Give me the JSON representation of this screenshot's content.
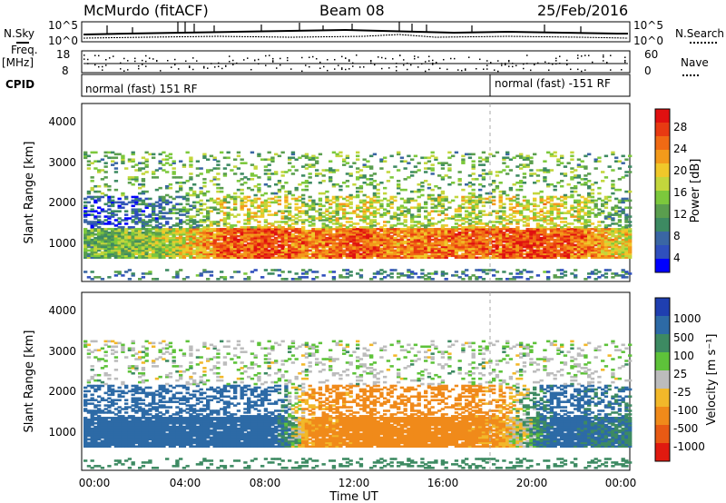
{
  "header": {
    "site": "McMurdo (fitACF)",
    "beam": "Beam 08",
    "date": "25/Feb/2016"
  },
  "strips": {
    "nsky_label": "N.Sky",
    "nsearch_label": "N.Search",
    "noise_ticks": [
      "10^5",
      "10^0"
    ],
    "freq_label": "Freq.",
    "freq_unit": "[MHz]",
    "freq_ticks": [
      "18",
      "8"
    ],
    "nave_label": "Nave",
    "nave_ticks": [
      "60",
      "0"
    ],
    "cpid_label": "CPID",
    "cpid_segments": [
      "normal (fast) 151 RF",
      "normal (fast) -151 RF"
    ]
  },
  "chart_data": [
    {
      "type": "heatmap",
      "title": "",
      "xlabel": "",
      "ylabel": "Slant Range [km]",
      "x_ticks": [
        "00:00",
        "04:00",
        "08:00",
        "12:00",
        "16:00",
        "20:00",
        "00:00"
      ],
      "xlim_hours": [
        0,
        24
      ],
      "ylim": [
        200,
        4600
      ],
      "y_ticks": [
        1000,
        2000,
        3000,
        4000
      ],
      "colorbar": {
        "label": "Power [dB]",
        "ticks": [
          4,
          8,
          12,
          16,
          20,
          24,
          28
        ],
        "range": [
          0,
          30
        ],
        "colors": [
          "#0000ff",
          "#2f4fbd",
          "#3a66a4",
          "#3d8a62",
          "#5a9e4e",
          "#7cc83c",
          "#c3d63c",
          "#f0c82a",
          "#f39a1b",
          "#f06a14",
          "#e83a12",
          "#e01010"
        ]
      },
      "profile_1000_1500km": [
        {
          "hour": 0.5,
          "power_db": 12
        },
        {
          "hour": 2,
          "power_db": 14
        },
        {
          "hour": 4,
          "power_db": 16
        },
        {
          "hour": 6,
          "power_db": 24
        },
        {
          "hour": 8,
          "power_db": 26
        },
        {
          "hour": 10,
          "power_db": 22
        },
        {
          "hour": 12,
          "power_db": 26
        },
        {
          "hour": 14,
          "power_db": 22
        },
        {
          "hour": 16,
          "power_db": 24
        },
        {
          "hour": 18,
          "power_db": 24
        },
        {
          "hour": 20,
          "power_db": 26
        },
        {
          "hour": 22,
          "power_db": 24
        },
        {
          "hour": 23.5,
          "power_db": 18
        }
      ]
    },
    {
      "type": "heatmap",
      "title": "",
      "xlabel": "Time UT",
      "ylabel": "Slant Range [km]",
      "x_ticks": [
        "00:00",
        "04:00",
        "08:00",
        "12:00",
        "16:00",
        "20:00",
        "00:00"
      ],
      "xlim_hours": [
        0,
        24
      ],
      "ylim": [
        200,
        4600
      ],
      "y_ticks": [
        1000,
        2000,
        3000,
        4000
      ],
      "colorbar": {
        "label": "Velocity [m s⁻¹]",
        "ticks": [
          "1000",
          "500",
          "100",
          "25",
          "-25",
          "-100",
          "-500",
          "-1000"
        ],
        "colors": [
          "#1f3fb0",
          "#2d6aa6",
          "#3d8a62",
          "#5ec23a",
          "#bcbcbc",
          "#f2b82a",
          "#f08a1a",
          "#e85a14",
          "#e01a10"
        ]
      },
      "profile_1000_1500km": [
        {
          "hour": 1,
          "velocity_ms": 300
        },
        {
          "hour": 4,
          "velocity_ms": 300
        },
        {
          "hour": 8,
          "velocity_ms": 250
        },
        {
          "hour": 10,
          "velocity_ms": -150
        },
        {
          "hour": 14,
          "velocity_ms": -200
        },
        {
          "hour": 18,
          "velocity_ms": -150
        },
        {
          "hour": 21,
          "velocity_ms": 200
        },
        {
          "hour": 23,
          "velocity_ms": 100
        }
      ]
    }
  ]
}
